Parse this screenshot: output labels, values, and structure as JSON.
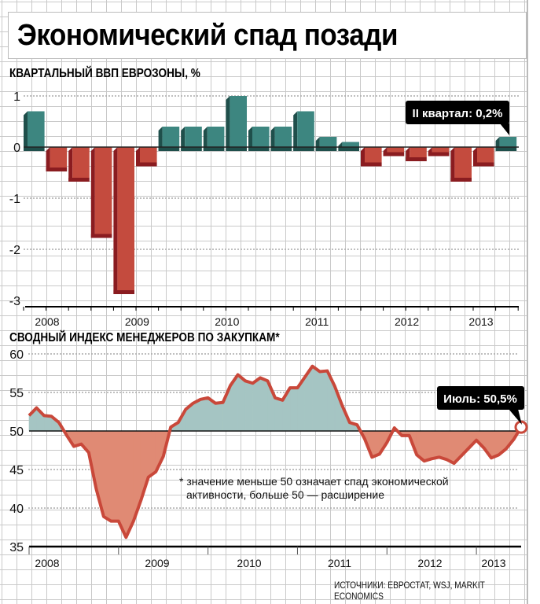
{
  "title": "Экономический спад позади",
  "source": "ИСТОЧНИКИ: ЕВРОСТАТ, WSJ, MARKIT ECONOMICS",
  "colors": {
    "positive": "#3d8680",
    "positive_dark": "#1f4f4b",
    "negative": "#c44b3e",
    "negative_dark": "#8a1c20",
    "area_pos": "#a5c5c3",
    "area_neg": "#e08a74",
    "line": "#c9483a"
  },
  "chart_data": [
    {
      "type": "bar",
      "title": "КВАРТАЛЬНЫЙ ВВП ЕВРОЗОНЫ, %",
      "categories": [
        "2008Q1",
        "2008Q2",
        "2008Q3",
        "2008Q4",
        "2009Q1",
        "2009Q2",
        "2009Q3",
        "2009Q4",
        "2010Q1",
        "2010Q2",
        "2010Q3",
        "2010Q4",
        "2011Q1",
        "2011Q2",
        "2011Q3",
        "2011Q4",
        "2012Q1",
        "2012Q2",
        "2012Q3",
        "2012Q4",
        "2013Q1",
        "2013Q2"
      ],
      "values": [
        0.7,
        -0.4,
        -0.6,
        -1.7,
        -2.8,
        -0.3,
        0.4,
        0.4,
        0.4,
        1.0,
        0.4,
        0.4,
        0.7,
        0.2,
        0.1,
        -0.3,
        -0.1,
        -0.2,
        -0.1,
        -0.6,
        -0.3,
        0.2
      ],
      "ylim": [
        -3,
        1.2
      ],
      "yticks": [
        "1",
        "0",
        "-1",
        "-2",
        "-3"
      ],
      "year_labels": [
        "2008",
        "2009",
        "2010",
        "2011",
        "2012",
        "2013"
      ],
      "annotation": "II квартал: 0,2%"
    },
    {
      "type": "area",
      "title": "СВОДНЫЙ ИНДЕКС МЕНЕДЖЕРОВ ПО ЗАКУПКАМ*",
      "baseline": 50,
      "values": [
        52.0,
        53.0,
        52.0,
        51.9,
        51.1,
        49.5,
        48.0,
        48.3,
        47.2,
        42.5,
        38.9,
        38.3,
        38.3,
        36.2,
        38.3,
        41.0,
        44.0,
        44.7,
        46.7,
        50.5,
        51.1,
        52.8,
        53.6,
        54.1,
        54.3,
        53.6,
        53.7,
        55.9,
        57.3,
        56.5,
        56.2,
        56.9,
        56.5,
        54.3,
        54.0,
        55.6,
        55.6,
        57.0,
        58.4,
        57.7,
        57.8,
        55.8,
        53.3,
        51.1,
        50.8,
        49.0,
        46.6,
        47.0,
        48.5,
        50.4,
        49.4,
        49.4,
        46.9,
        46.1,
        46.4,
        46.6,
        46.3,
        45.8,
        46.8,
        47.8,
        48.8,
        47.8,
        46.5,
        46.9,
        47.7,
        48.9,
        50.5
      ],
      "ylim": [
        35,
        60
      ],
      "yticks": [
        "60",
        "55",
        "50",
        "45",
        "40",
        "35"
      ],
      "year_labels": [
        "2008",
        "2009",
        "2010",
        "2011",
        "2012",
        "2013"
      ],
      "annotation": "Июль: 50,5%",
      "note_line1": "* значение меньше 50 означает спад экономической",
      "note_line2": "активности, больше 50 — расширение"
    }
  ]
}
